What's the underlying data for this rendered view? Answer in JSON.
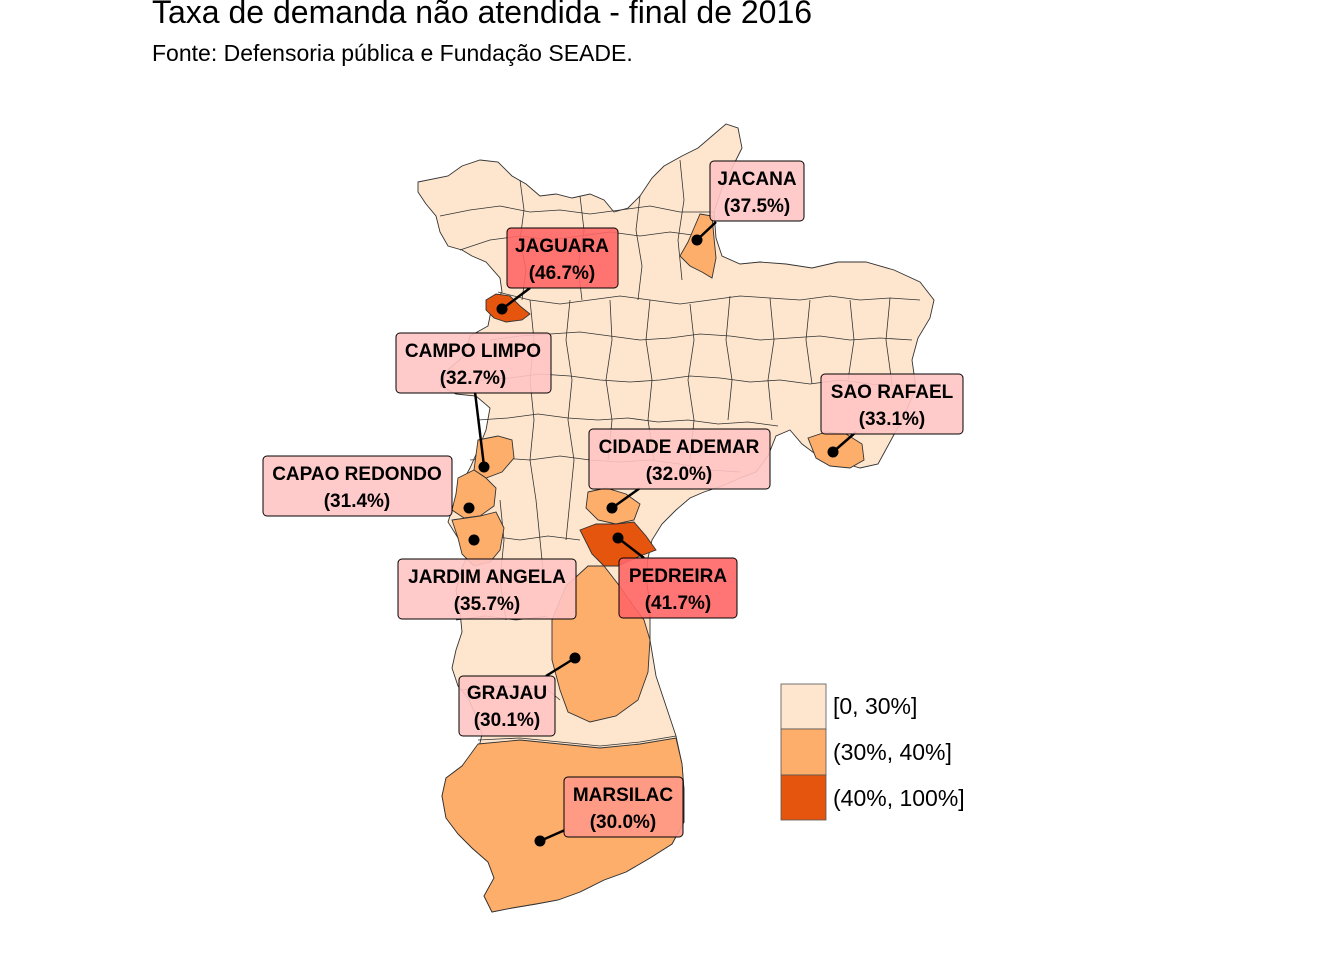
{
  "title": "Taxa de demanda não atendida - final de 2016",
  "subtitle": "Fonte: Defensoria pública e Fundação SEADE.",
  "colors": {
    "low": "#FEE6CE",
    "mid": "#FDAE6B",
    "high": "#E6550D",
    "label_light": "#FFC4C4",
    "label_mid": "#FF9988",
    "label_high": "#FF6666"
  },
  "legend": {
    "items": [
      {
        "label": "[0, 30%]",
        "color": "#FEE6CE"
      },
      {
        "label": "(30%, 40%]",
        "color": "#FDAE6B"
      },
      {
        "label": "(40%, 100%]",
        "color": "#E6550D"
      }
    ]
  },
  "districts": [
    {
      "name": "JACANA",
      "value": "(37.5%)",
      "category": "mid"
    },
    {
      "name": "JAGUARA",
      "value": "(46.7%)",
      "category": "high"
    },
    {
      "name": "CAMPO LIMPO",
      "value": "(32.7%)",
      "category": "mid"
    },
    {
      "name": "SAO RAFAEL",
      "value": "(33.1%)",
      "category": "mid"
    },
    {
      "name": "CIDADE ADEMAR",
      "value": "(32.0%)",
      "category": "mid"
    },
    {
      "name": "CAPAO REDONDO",
      "value": "(31.4%)",
      "category": "mid"
    },
    {
      "name": "JARDIM ANGELA",
      "value": "(35.7%)",
      "category": "mid"
    },
    {
      "name": "PEDREIRA",
      "value": "(41.7%)",
      "category": "high"
    },
    {
      "name": "GRAJAU",
      "value": "(30.1%)",
      "category": "mid"
    },
    {
      "name": "MARSILAC",
      "value": "(30.0%)",
      "category": "mid"
    }
  ]
}
